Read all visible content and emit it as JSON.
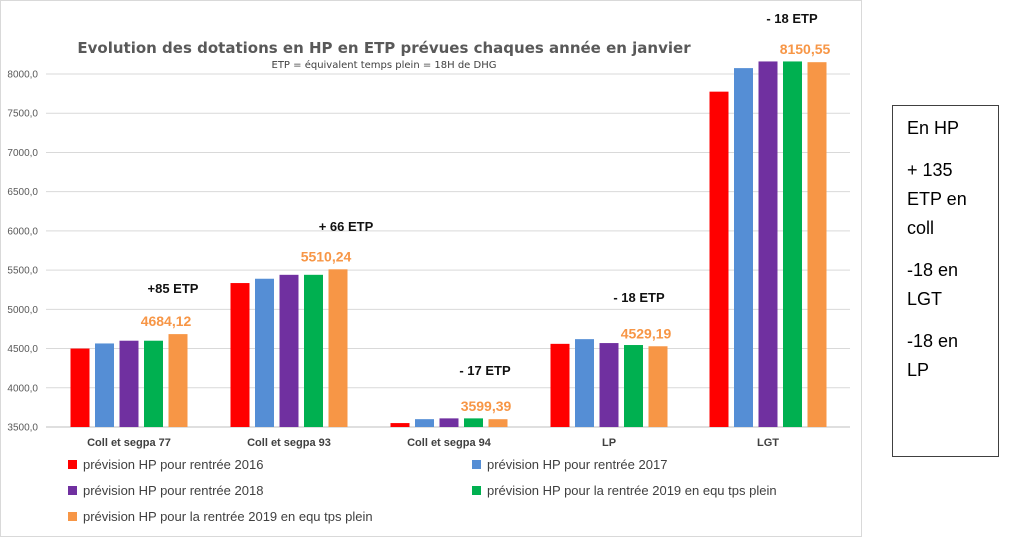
{
  "chart_data": {
    "type": "bar",
    "title": "Evolution des dotations en HP en ETP prévues chaques année en janvier",
    "subtitle": "ETP = équivalent temps plein = 18H de DHG",
    "categories": [
      "Coll et segpa 77",
      "Coll et segpa 93",
      "Coll et segpa 94",
      "LP",
      "LGT"
    ],
    "ylim": [
      3500,
      8300
    ],
    "yticks": [
      "3500,0",
      "4000,0",
      "4500,0",
      "5000,0",
      "5500,0",
      "6000,0",
      "6500,0",
      "7000,0",
      "7500,0",
      "8000,0"
    ],
    "grid": true,
    "legend_position": "bottom",
    "series": [
      {
        "name": "prévision HP  pour rentrée 2016",
        "color": "#ff0000",
        "values": [
          4500,
          5335,
          3550,
          4560,
          7775
        ]
      },
      {
        "name": "prévision HP  pour rentrée 2017",
        "color": "#558ed5",
        "values": [
          4565,
          5390,
          3600,
          4620,
          8075
        ]
      },
      {
        "name": "prévision HP  pour rentrée 2018",
        "color": "#7030a0",
        "values": [
          4600,
          5440,
          3610,
          4570,
          8160
        ]
      },
      {
        "name": "prévision HP pour la rentrée 2019 en equ tps plein",
        "color": "#00b050",
        "values": [
          4600,
          5440,
          3610,
          4545,
          8160
        ]
      },
      {
        "name": "prévision HP pour la rentrée 2019 en equ tps plein",
        "color": "#f79646",
        "values": [
          4684.12,
          5510.24,
          3599.39,
          4529.19,
          8150.55
        ]
      }
    ],
    "value_labels": [
      "4684,12",
      "5510,24",
      "3599,39",
      "4529,19",
      "8150,55"
    ],
    "annotations": [
      "+85 ETP",
      "+ 66 ETP",
      "- 17 ETP",
      "- 18  ETP",
      "- 18  ETP"
    ]
  },
  "note": {
    "lines": [
      "En HP",
      "+ 135\nETP en\ncoll",
      "-18 en\nLGT",
      "-18 en\nLP"
    ]
  }
}
